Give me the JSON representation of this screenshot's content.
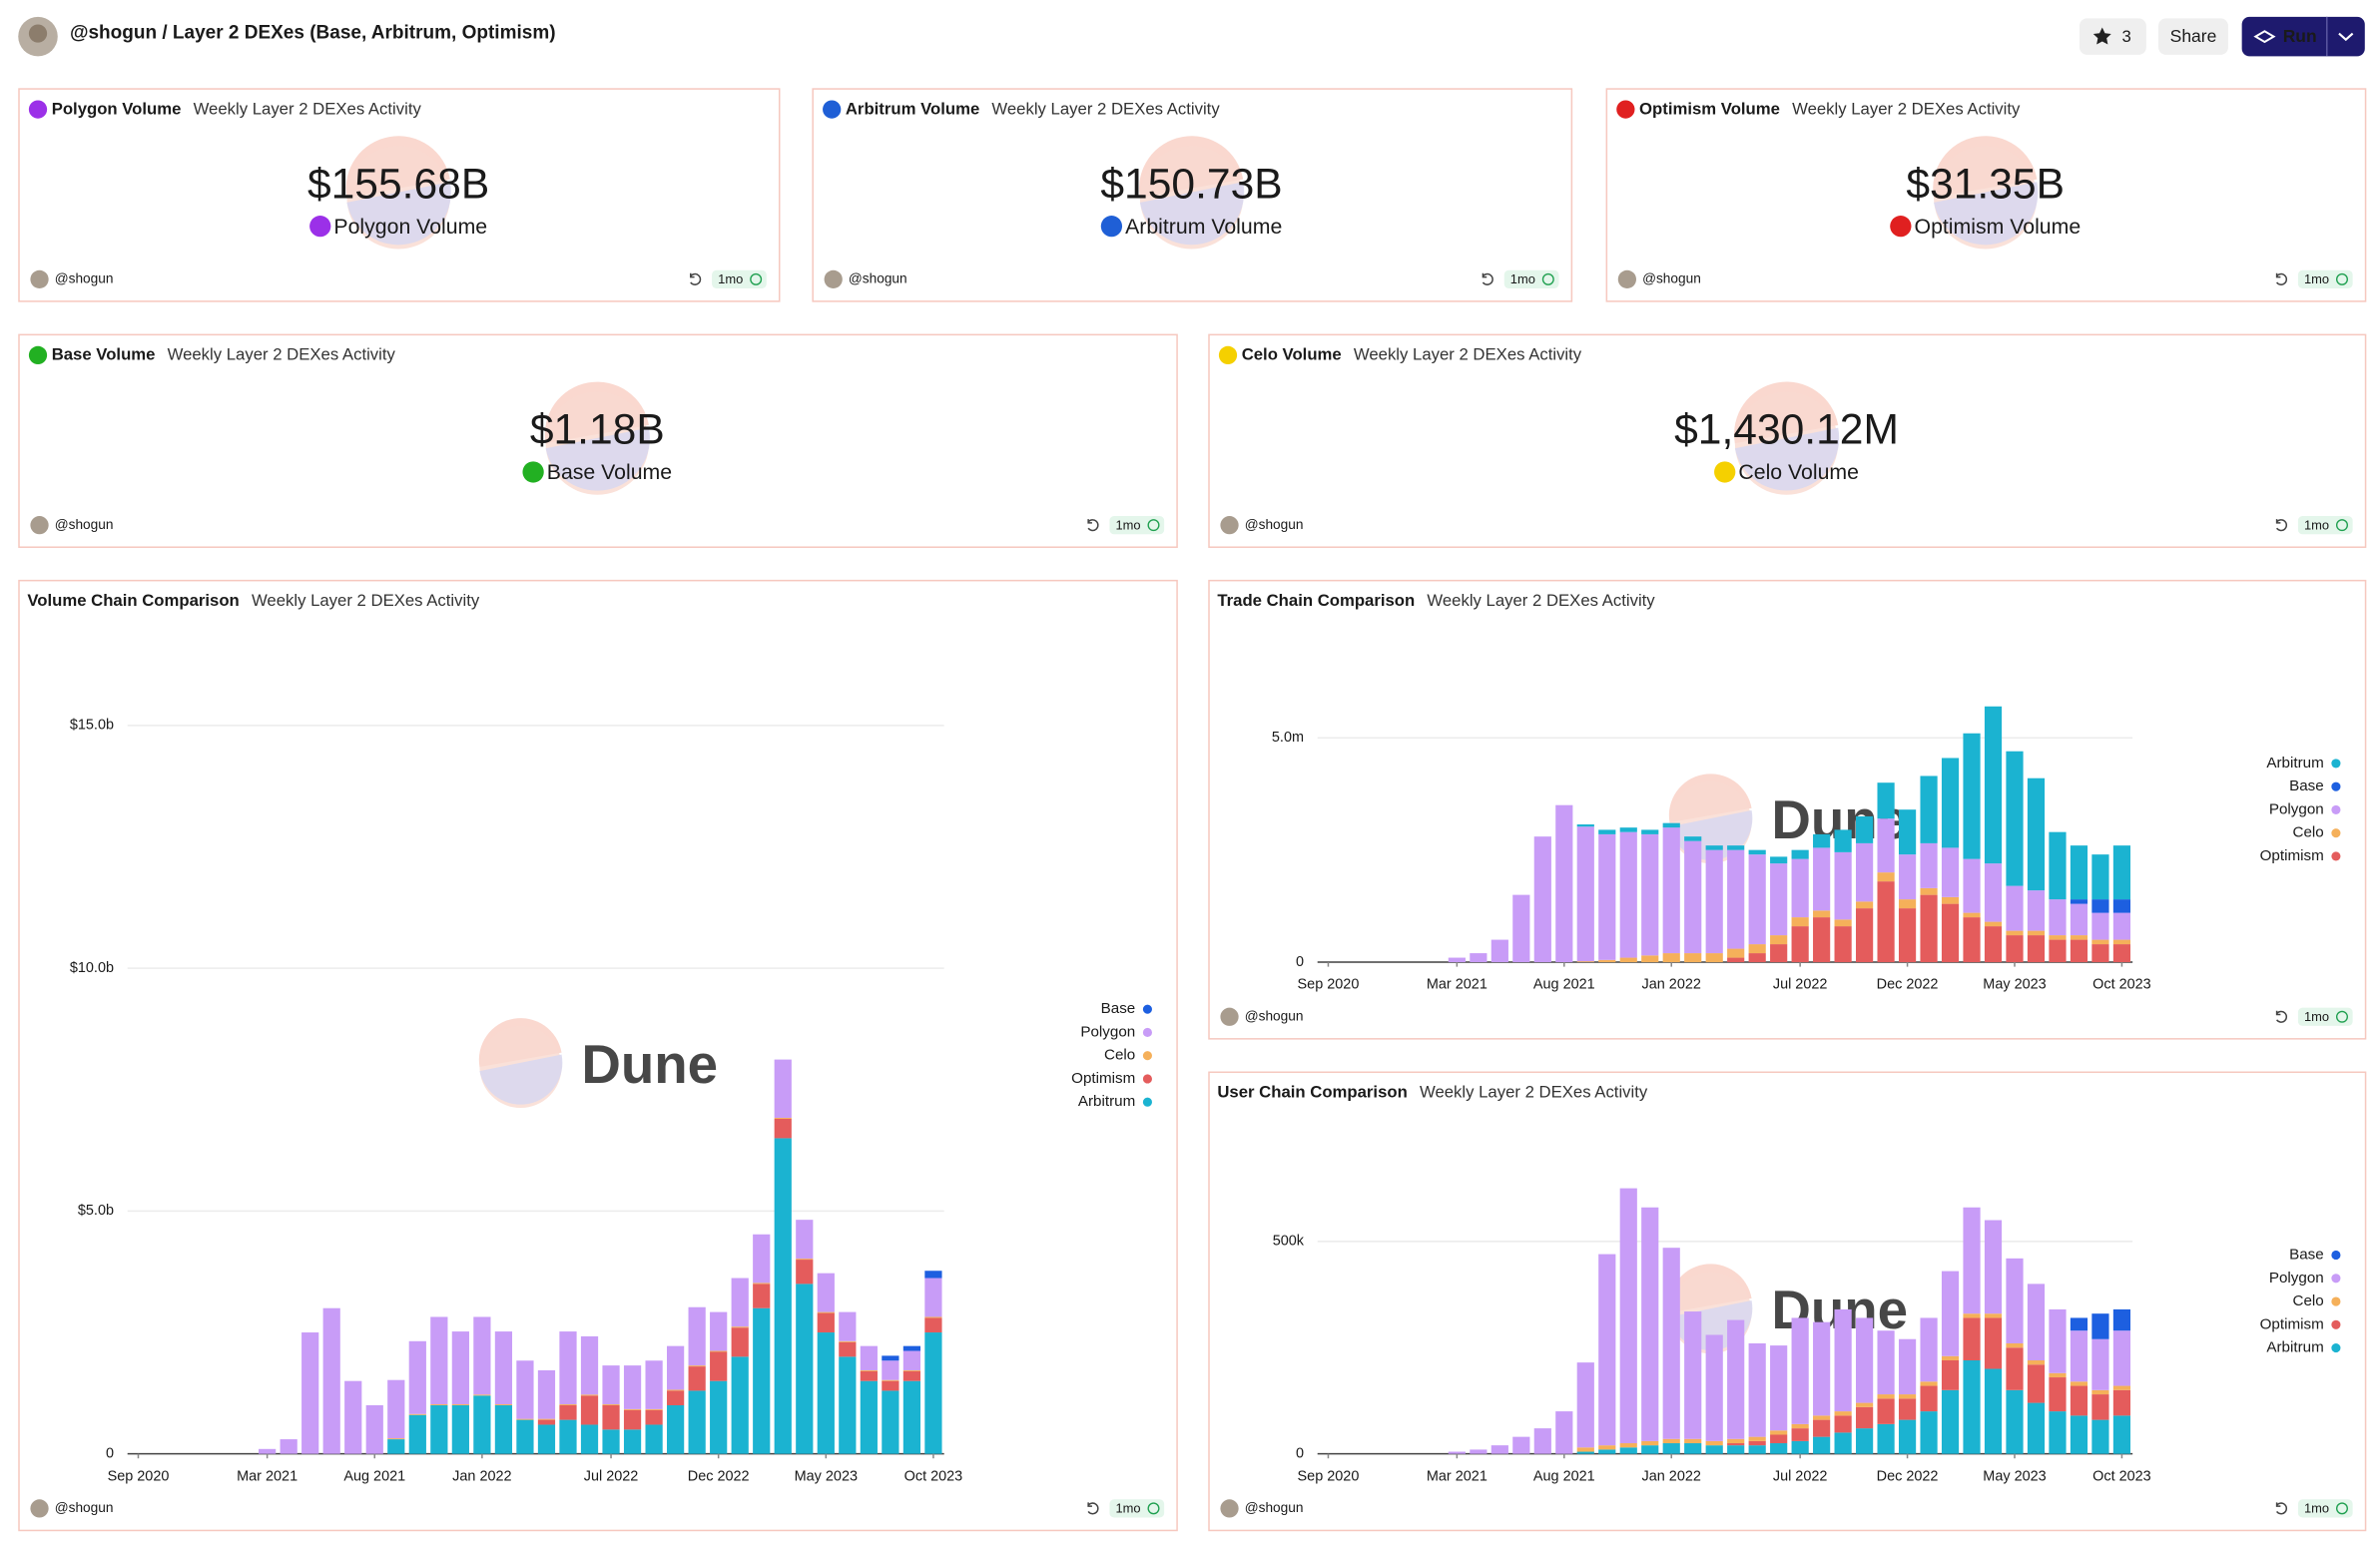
{
  "header": {
    "title": "@shogun / Layer 2 DEXes (Base, Arbitrum, Optimism)",
    "stars": 3,
    "share": "Share",
    "run": "Run"
  },
  "counters": [
    {
      "title": "Polygon Volume",
      "subtitle": "Weekly Layer 2 DEXes Activity",
      "value": "$155.68B",
      "label": "Polygon Volume",
      "author": "@shogun",
      "age": "1mo"
    },
    {
      "title": "Arbitrum Volume",
      "subtitle": "Weekly Layer 2 DEXes Activity",
      "value": "$150.73B",
      "label": "Arbitrum Volume",
      "author": "@shogun",
      "age": "1mo"
    },
    {
      "title": "Optimism Volume",
      "subtitle": "Weekly Layer 2 DEXes Activity",
      "value": "$31.35B",
      "label": "Optimism Volume",
      "author": "@shogun",
      "age": "1mo"
    },
    {
      "title": "Base Volume",
      "subtitle": "Weekly Layer 2 DEXes Activity",
      "value": "$1.18B",
      "label": "Base Volume",
      "author": "@shogun",
      "age": "1mo"
    },
    {
      "title": "Celo Volume",
      "subtitle": "Weekly Layer 2 DEXes Activity",
      "value": "$1,430.12M",
      "label": "Celo Volume",
      "author": "@shogun",
      "age": "1mo"
    }
  ],
  "chart_data": [
    {
      "type": "bar",
      "stacked": true,
      "title": "Volume Chain Comparison",
      "subtitle": "Weekly Layer 2 DEXes Activity",
      "watermark": "Dune",
      "author": "@shogun",
      "age": "1mo",
      "grid": true,
      "x": [
        "2020-09",
        "2020-10",
        "2020-11",
        "2020-12",
        "2021-01",
        "2021-02",
        "2021-03",
        "2021-04",
        "2021-05",
        "2021-06",
        "2021-07",
        "2021-08",
        "2021-09",
        "2021-10",
        "2021-11",
        "2021-12",
        "2022-01",
        "2022-02",
        "2022-03",
        "2022-04",
        "2022-05",
        "2022-06",
        "2022-07",
        "2022-08",
        "2022-09",
        "2022-10",
        "2022-11",
        "2022-12",
        "2023-01",
        "2023-02",
        "2023-03",
        "2023-04",
        "2023-05",
        "2023-06",
        "2023-07",
        "2023-08",
        "2023-09",
        "2023-10"
      ],
      "xticks": [
        {
          "value": "2020-09",
          "label": "Sep 2020"
        },
        {
          "value": "2021-03",
          "label": "Mar 2021"
        },
        {
          "value": "2021-08",
          "label": "Aug 2021"
        },
        {
          "value": "2022-01",
          "label": "Jan 2022"
        },
        {
          "value": "2022-07",
          "label": "Jul 2022"
        },
        {
          "value": "2022-12",
          "label": "Dec 2022"
        },
        {
          "value": "2023-05",
          "label": "May 2023"
        },
        {
          "value": "2023-10",
          "label": "Oct 2023"
        }
      ],
      "ylim": [
        0,
        17
      ],
      "yticks": [
        0,
        {
          "value": 5,
          "label": "$5.0b"
        },
        {
          "value": 10,
          "label": "$10.0b"
        },
        {
          "value": 15,
          "label": "$15.0b"
        }
      ],
      "series": [
        {
          "name": "Base",
          "color": "#1d5fe0",
          "values": [
            0,
            0,
            0,
            0,
            0,
            0,
            0,
            0,
            0,
            0,
            0,
            0,
            0,
            0,
            0,
            0,
            0,
            0,
            0,
            0,
            0,
            0,
            0,
            0,
            0,
            0,
            0,
            0,
            0,
            0,
            0,
            0,
            0,
            0,
            0,
            0.1,
            0.1,
            0.15
          ]
        },
        {
          "name": "Polygon",
          "color": "#c89cf7",
          "values": [
            0,
            0,
            0,
            0,
            0,
            0,
            0.1,
            0.3,
            2.5,
            3.0,
            1.5,
            1.0,
            1.2,
            1.5,
            1.8,
            1.5,
            1.6,
            1.5,
            1.2,
            1.0,
            1.5,
            1.2,
            0.8,
            0.9,
            1.0,
            0.9,
            1.2,
            0.8,
            1.0,
            1.0,
            1.2,
            0.8,
            0.8,
            0.6,
            0.5,
            0.4,
            0.4,
            0.8
          ]
        },
        {
          "name": "Celo",
          "color": "#f5b05a",
          "values": [
            0,
            0,
            0,
            0,
            0,
            0,
            0,
            0,
            0,
            0,
            0,
            0,
            0.02,
            0.02,
            0.02,
            0.02,
            0.02,
            0.02,
            0.02,
            0.02,
            0.02,
            0.02,
            0.02,
            0.02,
            0.02,
            0.02,
            0.02,
            0.02,
            0.02,
            0.02,
            0.02,
            0.02,
            0.02,
            0.02,
            0.02,
            0.02,
            0.02,
            0.02
          ]
        },
        {
          "name": "Optimism",
          "color": "#e45c5c",
          "values": [
            0,
            0,
            0,
            0,
            0,
            0,
            0,
            0,
            0,
            0,
            0,
            0,
            0,
            0,
            0,
            0,
            0,
            0,
            0,
            0.1,
            0.3,
            0.6,
            0.5,
            0.4,
            0.3,
            0.3,
            0.5,
            0.6,
            0.6,
            0.5,
            0.4,
            0.5,
            0.4,
            0.3,
            0.2,
            0.2,
            0.2,
            0.3
          ]
        },
        {
          "name": "Arbitrum",
          "color": "#1bb3d1",
          "values": [
            0,
            0,
            0,
            0,
            0,
            0,
            0,
            0,
            0,
            0,
            0,
            0,
            0.3,
            0.8,
            1.0,
            1.0,
            1.2,
            1.0,
            0.7,
            0.6,
            0.7,
            0.6,
            0.5,
            0.5,
            0.6,
            1.0,
            1.3,
            1.5,
            2.0,
            3.0,
            6.5,
            3.5,
            2.5,
            2.0,
            1.5,
            1.3,
            1.5,
            2.5
          ]
        }
      ]
    },
    {
      "type": "bar",
      "stacked": true,
      "title": "Trade Chain Comparison",
      "subtitle": "Weekly Layer 2 DEXes Activity",
      "watermark": "Dune",
      "author": "@shogun",
      "age": "1mo",
      "grid": true,
      "x": [
        "2020-09",
        "2020-10",
        "2020-11",
        "2020-12",
        "2021-01",
        "2021-02",
        "2021-03",
        "2021-04",
        "2021-05",
        "2021-06",
        "2021-07",
        "2021-08",
        "2021-09",
        "2021-10",
        "2021-11",
        "2021-12",
        "2022-01",
        "2022-02",
        "2022-03",
        "2022-04",
        "2022-05",
        "2022-06",
        "2022-07",
        "2022-08",
        "2022-09",
        "2022-10",
        "2022-11",
        "2022-12",
        "2023-01",
        "2023-02",
        "2023-03",
        "2023-04",
        "2023-05",
        "2023-06",
        "2023-07",
        "2023-08",
        "2023-09",
        "2023-10"
      ],
      "xticks": [
        {
          "value": "2020-09",
          "label": "Sep 2020"
        },
        {
          "value": "2021-03",
          "label": "Mar 2021"
        },
        {
          "value": "2021-08",
          "label": "Aug 2021"
        },
        {
          "value": "2022-01",
          "label": "Jan 2022"
        },
        {
          "value": "2022-07",
          "label": "Jul 2022"
        },
        {
          "value": "2022-12",
          "label": "Dec 2022"
        },
        {
          "value": "2023-05",
          "label": "May 2023"
        },
        {
          "value": "2023-10",
          "label": "Oct 2023"
        }
      ],
      "ylim": [
        0,
        7
      ],
      "yticks": [
        0,
        {
          "value": 5,
          "label": "5.0m"
        }
      ],
      "series": [
        {
          "name": "Arbitrum",
          "color": "#1bb3d1",
          "values": [
            0,
            0,
            0,
            0,
            0,
            0,
            0,
            0,
            0,
            0,
            0,
            0,
            0.05,
            0.1,
            0.1,
            0.1,
            0.1,
            0.1,
            0.1,
            0.1,
            0.1,
            0.15,
            0.2,
            0.3,
            0.5,
            0.6,
            0.8,
            1.0,
            1.5,
            2.0,
            2.8,
            3.5,
            3.0,
            2.5,
            1.5,
            1.2,
            1.0,
            1.2
          ]
        },
        {
          "name": "Base",
          "color": "#1d5fe0",
          "values": [
            0,
            0,
            0,
            0,
            0,
            0,
            0,
            0,
            0,
            0,
            0,
            0,
            0,
            0,
            0,
            0,
            0,
            0,
            0,
            0,
            0,
            0,
            0,
            0,
            0,
            0,
            0,
            0,
            0,
            0,
            0,
            0,
            0,
            0,
            0,
            0.1,
            0.3,
            0.3
          ]
        },
        {
          "name": "Polygon",
          "color": "#c89cf7",
          "values": [
            0,
            0,
            0,
            0,
            0,
            0,
            0.1,
            0.2,
            0.5,
            1.5,
            2.8,
            3.5,
            3.0,
            2.8,
            2.8,
            2.7,
            2.8,
            2.5,
            2.3,
            2.2,
            2.0,
            1.6,
            1.3,
            1.4,
            1.5,
            1.3,
            1.2,
            1.0,
            1.0,
            1.1,
            1.2,
            1.3,
            1.0,
            0.9,
            0.8,
            0.7,
            0.6,
            0.6
          ]
        },
        {
          "name": "Celo",
          "color": "#f5b05a",
          "values": [
            0,
            0,
            0,
            0,
            0,
            0,
            0,
            0,
            0,
            0,
            0,
            0,
            0.02,
            0.05,
            0.1,
            0.15,
            0.2,
            0.2,
            0.2,
            0.2,
            0.2,
            0.2,
            0.2,
            0.15,
            0.15,
            0.15,
            0.2,
            0.2,
            0.15,
            0.15,
            0.1,
            0.1,
            0.1,
            0.1,
            0.1,
            0.1,
            0.1,
            0.1
          ]
        },
        {
          "name": "Optimism",
          "color": "#e45c5c",
          "values": [
            0,
            0,
            0,
            0,
            0,
            0,
            0,
            0,
            0,
            0,
            0,
            0,
            0,
            0,
            0,
            0,
            0,
            0,
            0,
            0.1,
            0.2,
            0.4,
            0.8,
            1.0,
            0.8,
            1.2,
            1.8,
            1.2,
            1.5,
            1.3,
            1.0,
            0.8,
            0.6,
            0.6,
            0.5,
            0.5,
            0.4,
            0.4
          ]
        }
      ]
    },
    {
      "type": "bar",
      "stacked": true,
      "title": "User Chain Comparison",
      "subtitle": "Weekly Layer 2 DEXes Activity",
      "watermark": "Dune",
      "author": "@shogun",
      "age": "1mo",
      "grid": true,
      "x": [
        "2020-09",
        "2020-10",
        "2020-11",
        "2020-12",
        "2021-01",
        "2021-02",
        "2021-03",
        "2021-04",
        "2021-05",
        "2021-06",
        "2021-07",
        "2021-08",
        "2021-09",
        "2021-10",
        "2021-11",
        "2021-12",
        "2022-01",
        "2022-02",
        "2022-03",
        "2022-04",
        "2022-05",
        "2022-06",
        "2022-07",
        "2022-08",
        "2022-09",
        "2022-10",
        "2022-11",
        "2022-12",
        "2023-01",
        "2023-02",
        "2023-03",
        "2023-04",
        "2023-05",
        "2023-06",
        "2023-07",
        "2023-08",
        "2023-09",
        "2023-10"
      ],
      "xticks": [
        {
          "value": "2020-09",
          "label": "Sep 2020"
        },
        {
          "value": "2021-03",
          "label": "Mar 2021"
        },
        {
          "value": "2021-08",
          "label": "Aug 2021"
        },
        {
          "value": "2022-01",
          "label": "Jan 2022"
        },
        {
          "value": "2022-07",
          "label": "Jul 2022"
        },
        {
          "value": "2022-12",
          "label": "Dec 2022"
        },
        {
          "value": "2023-05",
          "label": "May 2023"
        },
        {
          "value": "2023-10",
          "label": "Oct 2023"
        }
      ],
      "ylim": [
        0,
        750
      ],
      "yticks": [
        0,
        {
          "value": 500,
          "label": "500k"
        }
      ],
      "series": [
        {
          "name": "Base",
          "color": "#1d5fe0",
          "values": [
            0,
            0,
            0,
            0,
            0,
            0,
            0,
            0,
            0,
            0,
            0,
            0,
            0,
            0,
            0,
            0,
            0,
            0,
            0,
            0,
            0,
            0,
            0,
            0,
            0,
            0,
            0,
            0,
            0,
            0,
            0,
            0,
            0,
            0,
            0,
            30,
            60,
            50
          ]
        },
        {
          "name": "Polygon",
          "color": "#c89cf7",
          "values": [
            0,
            0,
            0,
            0,
            0,
            0,
            5,
            10,
            20,
            40,
            60,
            100,
            200,
            450,
            600,
            550,
            450,
            300,
            250,
            280,
            220,
            200,
            250,
            220,
            240,
            200,
            150,
            130,
            150,
            200,
            250,
            220,
            200,
            180,
            150,
            120,
            120,
            130
          ]
        },
        {
          "name": "Celo",
          "color": "#f5b05a",
          "values": [
            0,
            0,
            0,
            0,
            0,
            0,
            0,
            0,
            0,
            0,
            0,
            0,
            10,
            10,
            10,
            10,
            10,
            10,
            10,
            10,
            10,
            10,
            10,
            10,
            10,
            10,
            10,
            10,
            10,
            10,
            10,
            10,
            10,
            10,
            10,
            10,
            10,
            10
          ]
        },
        {
          "name": "Optimism",
          "color": "#e45c5c",
          "values": [
            0,
            0,
            0,
            0,
            0,
            0,
            0,
            0,
            0,
            0,
            0,
            0,
            0,
            0,
            0,
            0,
            0,
            0,
            0,
            5,
            10,
            20,
            30,
            40,
            40,
            50,
            60,
            50,
            60,
            70,
            100,
            120,
            100,
            90,
            80,
            70,
            60,
            60
          ]
        },
        {
          "name": "Arbitrum",
          "color": "#1bb3d1",
          "values": [
            0,
            0,
            0,
            0,
            0,
            0,
            0,
            0,
            0,
            0,
            0,
            0,
            5,
            10,
            15,
            20,
            25,
            25,
            20,
            20,
            20,
            25,
            30,
            40,
            50,
            60,
            70,
            80,
            100,
            150,
            220,
            200,
            150,
            120,
            100,
            90,
            80,
            90
          ]
        }
      ]
    }
  ]
}
